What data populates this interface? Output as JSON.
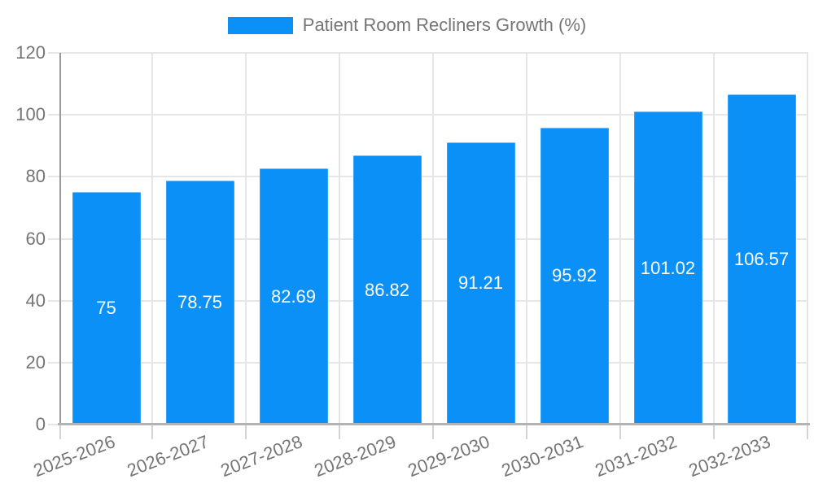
{
  "chart_data": {
    "type": "bar",
    "title": "",
    "legend_label": "Patient Room Recliners Growth (%)",
    "legend_position": "top",
    "categories": [
      "2025-2026",
      "2026-2027",
      "2027-2028",
      "2028-2029",
      "2029-2030",
      "2030-2031",
      "2031-2032",
      "2032-2033"
    ],
    "series": [
      {
        "name": "Patient Room Recliners Growth (%)",
        "values": [
          75,
          78.75,
          82.69,
          86.82,
          91.21,
          95.92,
          101.02,
          106.57
        ]
      }
    ],
    "value_labels": [
      "75",
      "78.75",
      "82.69",
      "86.82",
      "91.21",
      "95.92",
      "101.02",
      "106.57"
    ],
    "xlabel": "",
    "ylabel": "",
    "ylim": [
      0,
      120
    ],
    "yticks": [
      0,
      20,
      40,
      60,
      80,
      100,
      120
    ],
    "grid": true,
    "x_tick_rotation_deg": -21,
    "colors": {
      "bar": "#0b90f8",
      "value_label": "#ffffff",
      "axis_text": "#757575",
      "gridline": "#e6e6e6",
      "tick": "#d4d4d4",
      "y_axis_line": "#9a9a9a",
      "x_axis_line": "#b3b3b3"
    }
  }
}
